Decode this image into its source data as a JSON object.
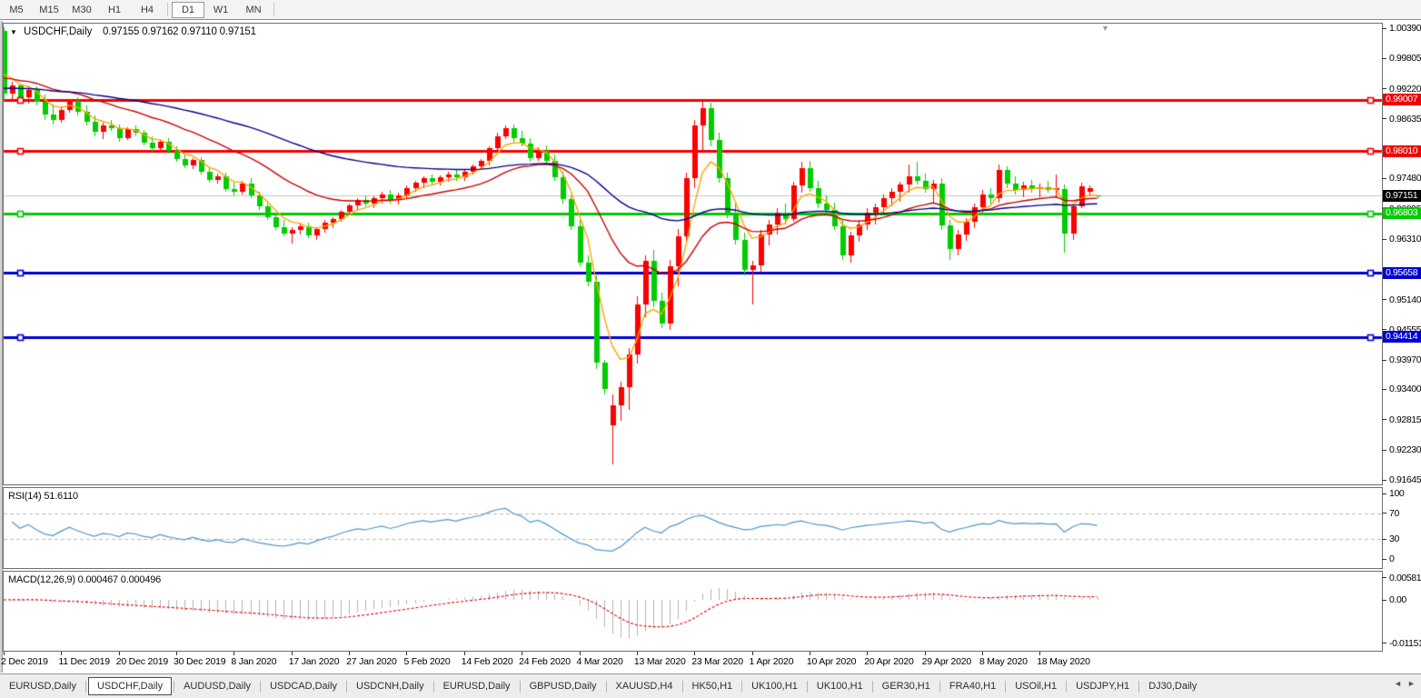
{
  "toolbar": {
    "timeframes": [
      "M5",
      "M15",
      "M30",
      "H1",
      "H4",
      "D1",
      "W1",
      "MN"
    ],
    "active": "D1"
  },
  "chart": {
    "title": "USDCHF,Daily",
    "quote_text": "0.97155 0.97162 0.97110 0.97151"
  },
  "chart_data": {
    "type": "candlestick",
    "symbol": "USDCHF",
    "timeframe": "Daily",
    "ohlc_current": {
      "open": 0.97155,
      "high": 0.97162,
      "low": 0.9711,
      "close": 0.97151
    },
    "price_axis": {
      "ticks": [
        "1.00390",
        "0.99805",
        "0.99220",
        "0.98635",
        "0.97480",
        "0.96895",
        "0.96310",
        "0.95140",
        "0.94555",
        "0.93970",
        "0.93400",
        "0.92815",
        "0.92230",
        "0.91645"
      ],
      "current_label": "0.97151",
      "current_price": 0.97151
    },
    "hlines": [
      {
        "price": 0.99007,
        "label": "0.99007",
        "color": "#f20000"
      },
      {
        "price": 0.9801,
        "label": "0.98010",
        "color": "#f20000"
      },
      {
        "price": 0.96803,
        "label": "0.96803",
        "color": "#00cc00"
      },
      {
        "price": 0.95658,
        "label": "0.95658",
        "color": "#0000d0"
      },
      {
        "price": 0.94414,
        "label": "0.94414",
        "color": "#0000d0"
      }
    ],
    "x_axis": {
      "labels": [
        "2 Dec 2019",
        "11 Dec 2019",
        "20 Dec 2019",
        "30 Dec 2019",
        "8 Jan 2020",
        "17 Jan 2020",
        "27 Jan 2020",
        "5 Feb 2020",
        "14 Feb 2020",
        "24 Feb 2020",
        "4 Mar 2020",
        "13 Mar 2020",
        "23 Mar 2020",
        "1 Apr 2020",
        "10 Apr 2020",
        "20 Apr 2020",
        "29 Apr 2020",
        "8 May 2020",
        "18 May 2020"
      ],
      "bars_per_label": 7
    },
    "colors": {
      "bull": "#fd0000",
      "bear": "#00cc00",
      "current_line": "#c6c6c6",
      "ma_fast": "#ffa500",
      "ma_mid": "#cc0000",
      "ma_slow": "#000090"
    },
    "moving_averages": [
      {
        "period": 5,
        "seed": 0.9968,
        "color_key": "ma_fast"
      },
      {
        "period": 21,
        "seed": 0.9945,
        "color_key": "ma_mid"
      },
      {
        "period": 58,
        "seed": 0.9923,
        "color_key": "ma_slow"
      }
    ],
    "indicators": [
      {
        "name": "rsi",
        "label": "RSI(14) 51.6110",
        "period": 14,
        "value": 51.611,
        "levels": [
          70,
          30
        ],
        "axis_ticks": [
          "100",
          "70",
          "30",
          "0"
        ],
        "color": "#4e97d1"
      },
      {
        "name": "macd",
        "label": "MACD(12,26,9) 0.000467 0.000496",
        "fast": 12,
        "slow": 26,
        "signal": 9,
        "values": [
          0.000467,
          0.000496
        ],
        "axis_ticks": [
          "0.005818",
          "0.00",
          "-0.011514"
        ],
        "hist_color": "#b2b2b2",
        "signal_color": "#e00000"
      }
    ],
    "candles": [
      [
        1.0034,
        1.004,
        0.99,
        0.9912
      ],
      [
        0.9912,
        0.9935,
        0.99,
        0.9928
      ],
      [
        0.9928,
        0.9932,
        0.9898,
        0.9905
      ],
      [
        0.9905,
        0.9925,
        0.9893,
        0.992
      ],
      [
        0.992,
        0.9926,
        0.989,
        0.9896
      ],
      [
        0.9896,
        0.991,
        0.9862,
        0.9872
      ],
      [
        0.9872,
        0.9892,
        0.9852,
        0.9862
      ],
      [
        0.9862,
        0.9888,
        0.9856,
        0.988
      ],
      [
        0.988,
        0.9902,
        0.9875,
        0.9898
      ],
      [
        0.9898,
        0.9906,
        0.987,
        0.9878
      ],
      [
        0.9878,
        0.989,
        0.985,
        0.9858
      ],
      [
        0.9858,
        0.987,
        0.983,
        0.9838
      ],
      [
        0.9838,
        0.9856,
        0.9824,
        0.985
      ],
      [
        0.985,
        0.9862,
        0.984,
        0.9846
      ],
      [
        0.9846,
        0.9852,
        0.982,
        0.9826
      ],
      [
        0.9826,
        0.9848,
        0.9822,
        0.9843
      ],
      [
        0.9843,
        0.985,
        0.983,
        0.9836
      ],
      [
        0.9836,
        0.9842,
        0.9812,
        0.9818
      ],
      [
        0.9818,
        0.983,
        0.98,
        0.9806
      ],
      [
        0.9806,
        0.9824,
        0.98,
        0.982
      ],
      [
        0.982,
        0.9826,
        0.9796,
        0.9802
      ],
      [
        0.9802,
        0.981,
        0.978,
        0.9786
      ],
      [
        0.9786,
        0.9796,
        0.9768,
        0.9774
      ],
      [
        0.9774,
        0.9788,
        0.9766,
        0.9784
      ],
      [
        0.9784,
        0.979,
        0.9756,
        0.9762
      ],
      [
        0.9762,
        0.977,
        0.974,
        0.9746
      ],
      [
        0.9746,
        0.9758,
        0.9738,
        0.9752
      ],
      [
        0.9752,
        0.976,
        0.9722,
        0.9728
      ],
      [
        0.9728,
        0.9742,
        0.9716,
        0.9722
      ],
      [
        0.9722,
        0.9744,
        0.9718,
        0.9738
      ],
      [
        0.9738,
        0.9748,
        0.971,
        0.9716
      ],
      [
        0.9716,
        0.9722,
        0.9688,
        0.9694
      ],
      [
        0.9694,
        0.97,
        0.9668,
        0.9674
      ],
      [
        0.9674,
        0.9682,
        0.9648,
        0.9654
      ],
      [
        0.9654,
        0.9668,
        0.9636,
        0.9642
      ],
      [
        0.9642,
        0.9654,
        0.9622,
        0.9648
      ],
      [
        0.9648,
        0.9662,
        0.964,
        0.9656
      ],
      [
        0.9656,
        0.9662,
        0.9632,
        0.9638
      ],
      [
        0.9638,
        0.9654,
        0.963,
        0.965
      ],
      [
        0.965,
        0.9668,
        0.9644,
        0.9662
      ],
      [
        0.9662,
        0.9674,
        0.9652,
        0.967
      ],
      [
        0.967,
        0.9688,
        0.9664,
        0.9684
      ],
      [
        0.9684,
        0.97,
        0.9676,
        0.9696
      ],
      [
        0.9696,
        0.971,
        0.9688,
        0.9706
      ],
      [
        0.9706,
        0.9716,
        0.9694,
        0.97
      ],
      [
        0.97,
        0.9714,
        0.969,
        0.971
      ],
      [
        0.971,
        0.9722,
        0.97,
        0.9718
      ],
      [
        0.9718,
        0.9726,
        0.97,
        0.9706
      ],
      [
        0.9706,
        0.972,
        0.9698,
        0.9716
      ],
      [
        0.9716,
        0.9734,
        0.971,
        0.973
      ],
      [
        0.973,
        0.9744,
        0.9722,
        0.974
      ],
      [
        0.974,
        0.9752,
        0.973,
        0.9748
      ],
      [
        0.9748,
        0.9756,
        0.9736,
        0.9742
      ],
      [
        0.9742,
        0.9754,
        0.9734,
        0.975
      ],
      [
        0.975,
        0.9762,
        0.9742,
        0.9756
      ],
      [
        0.9756,
        0.9764,
        0.9744,
        0.975
      ],
      [
        0.975,
        0.9766,
        0.9744,
        0.9762
      ],
      [
        0.9762,
        0.9776,
        0.9756,
        0.9772
      ],
      [
        0.9772,
        0.9786,
        0.9764,
        0.9782
      ],
      [
        0.9782,
        0.981,
        0.9774,
        0.9806
      ],
      [
        0.9806,
        0.9836,
        0.98,
        0.983
      ],
      [
        0.983,
        0.985,
        0.9824,
        0.9845
      ],
      [
        0.9845,
        0.9852,
        0.982,
        0.9826
      ],
      [
        0.9826,
        0.984,
        0.981,
        0.9816
      ],
      [
        0.9816,
        0.9826,
        0.978,
        0.9788
      ],
      [
        0.9788,
        0.9808,
        0.9782,
        0.9802
      ],
      [
        0.9802,
        0.9812,
        0.9776,
        0.9782
      ],
      [
        0.9782,
        0.9794,
        0.9744,
        0.975
      ],
      [
        0.975,
        0.9762,
        0.97,
        0.9708
      ],
      [
        0.9708,
        0.9716,
        0.9648,
        0.9656
      ],
      [
        0.9656,
        0.9668,
        0.9578,
        0.9586
      ],
      [
        0.9586,
        0.96,
        0.954,
        0.9548
      ],
      [
        0.9548,
        0.956,
        0.938,
        0.9392
      ],
      [
        0.9392,
        0.9398,
        0.933,
        0.934
      ],
      [
        0.927,
        0.933,
        0.9195,
        0.931
      ],
      [
        0.931,
        0.9355,
        0.928,
        0.9345
      ],
      [
        0.9345,
        0.942,
        0.93,
        0.9408
      ],
      [
        0.9408,
        0.952,
        0.939,
        0.9505
      ],
      [
        0.9505,
        0.96,
        0.948,
        0.9588
      ],
      [
        0.9588,
        0.961,
        0.95,
        0.9512
      ],
      [
        0.9512,
        0.9528,
        0.9458,
        0.9468
      ],
      [
        0.9468,
        0.959,
        0.9455,
        0.9578
      ],
      [
        0.9578,
        0.965,
        0.954,
        0.9636
      ],
      [
        0.9636,
        0.976,
        0.962,
        0.9748
      ],
      [
        0.9748,
        0.9862,
        0.973,
        0.985
      ],
      [
        0.985,
        0.9901,
        0.98,
        0.9885
      ],
      [
        0.9885,
        0.9895,
        0.981,
        0.9822
      ],
      [
        0.9822,
        0.9836,
        0.974,
        0.9748
      ],
      [
        0.9748,
        0.976,
        0.9672,
        0.968
      ],
      [
        0.968,
        0.97,
        0.962,
        0.963
      ],
      [
        0.963,
        0.9644,
        0.956,
        0.9572
      ],
      [
        0.9572,
        0.9588,
        0.9504,
        0.958
      ],
      [
        0.958,
        0.9648,
        0.9566,
        0.964
      ],
      [
        0.964,
        0.9668,
        0.9618,
        0.966
      ],
      [
        0.966,
        0.969,
        0.964,
        0.9682
      ],
      [
        0.9682,
        0.97,
        0.966,
        0.967
      ],
      [
        0.967,
        0.9742,
        0.9664,
        0.9735
      ],
      [
        0.9735,
        0.978,
        0.972,
        0.9768
      ],
      [
        0.9768,
        0.9782,
        0.9722,
        0.973
      ],
      [
        0.973,
        0.9744,
        0.969,
        0.97
      ],
      [
        0.97,
        0.9716,
        0.968,
        0.9688
      ],
      [
        0.9688,
        0.9702,
        0.9648,
        0.9655
      ],
      [
        0.9655,
        0.9668,
        0.959,
        0.96
      ],
      [
        0.96,
        0.9645,
        0.9585,
        0.9638
      ],
      [
        0.9638,
        0.9668,
        0.9625,
        0.966
      ],
      [
        0.966,
        0.969,
        0.9648,
        0.9682
      ],
      [
        0.9682,
        0.97,
        0.966,
        0.9692
      ],
      [
        0.9692,
        0.9718,
        0.9682,
        0.971
      ],
      [
        0.971,
        0.973,
        0.9694,
        0.9722
      ],
      [
        0.9722,
        0.9742,
        0.9704,
        0.9736
      ],
      [
        0.9736,
        0.9775,
        0.972,
        0.9752
      ],
      [
        0.9752,
        0.978,
        0.9736,
        0.9744
      ],
      [
        0.9744,
        0.9758,
        0.972,
        0.9728
      ],
      [
        0.9728,
        0.9746,
        0.97,
        0.9738
      ],
      [
        0.9738,
        0.9748,
        0.9648,
        0.9658
      ],
      [
        0.9658,
        0.9668,
        0.959,
        0.9612
      ],
      [
        0.9612,
        0.9648,
        0.96,
        0.964
      ],
      [
        0.964,
        0.9672,
        0.9628,
        0.9664
      ],
      [
        0.9664,
        0.97,
        0.9652,
        0.9692
      ],
      [
        0.9692,
        0.9726,
        0.9682,
        0.9718
      ],
      [
        0.9718,
        0.973,
        0.97,
        0.971
      ],
      [
        0.971,
        0.9776,
        0.9702,
        0.9764
      ],
      [
        0.9764,
        0.9772,
        0.973,
        0.9738
      ],
      [
        0.9738,
        0.9752,
        0.9718,
        0.9726
      ],
      [
        0.9726,
        0.9742,
        0.9712,
        0.9734
      ],
      [
        0.9734,
        0.9746,
        0.972,
        0.9728
      ],
      [
        0.9728,
        0.9738,
        0.9712,
        0.9732
      ],
      [
        0.9732,
        0.9744,
        0.972,
        0.9726
      ],
      [
        0.9726,
        0.9756,
        0.971,
        0.9729
      ],
      [
        0.9727,
        0.9736,
        0.9605,
        0.9641
      ],
      [
        0.9641,
        0.97,
        0.963,
        0.9694
      ],
      [
        0.9694,
        0.974,
        0.969,
        0.9733
      ],
      [
        0.9722,
        0.9734,
        0.9716,
        0.9729
      ],
      [
        0.97155,
        0.97162,
        0.9711,
        0.97151
      ]
    ]
  },
  "tabs": {
    "items": [
      {
        "label": "EURUSD,Daily"
      },
      {
        "label": "USDCHF,Daily",
        "active": true
      },
      {
        "label": "AUDUSD,Daily"
      },
      {
        "label": "USDCAD,Daily"
      },
      {
        "label": "USDCNH,Daily"
      },
      {
        "label": "EURUSD,Daily"
      },
      {
        "label": "GBPUSD,Daily"
      },
      {
        "label": "XAUUSD,H4"
      },
      {
        "label": "HK50,H1"
      },
      {
        "label": "UK100,H1"
      },
      {
        "label": "UK100,H1"
      },
      {
        "label": "GER30,H1"
      },
      {
        "label": "FRA40,H1"
      },
      {
        "label": "USOil,H1"
      },
      {
        "label": "USDJPY,H1"
      },
      {
        "label": "DJ30,Daily"
      }
    ],
    "scroll_left": "◄",
    "scroll_right": "►"
  },
  "markers": {
    "scroll_to_end": "▼",
    "symbol_dropdown": "▼"
  }
}
